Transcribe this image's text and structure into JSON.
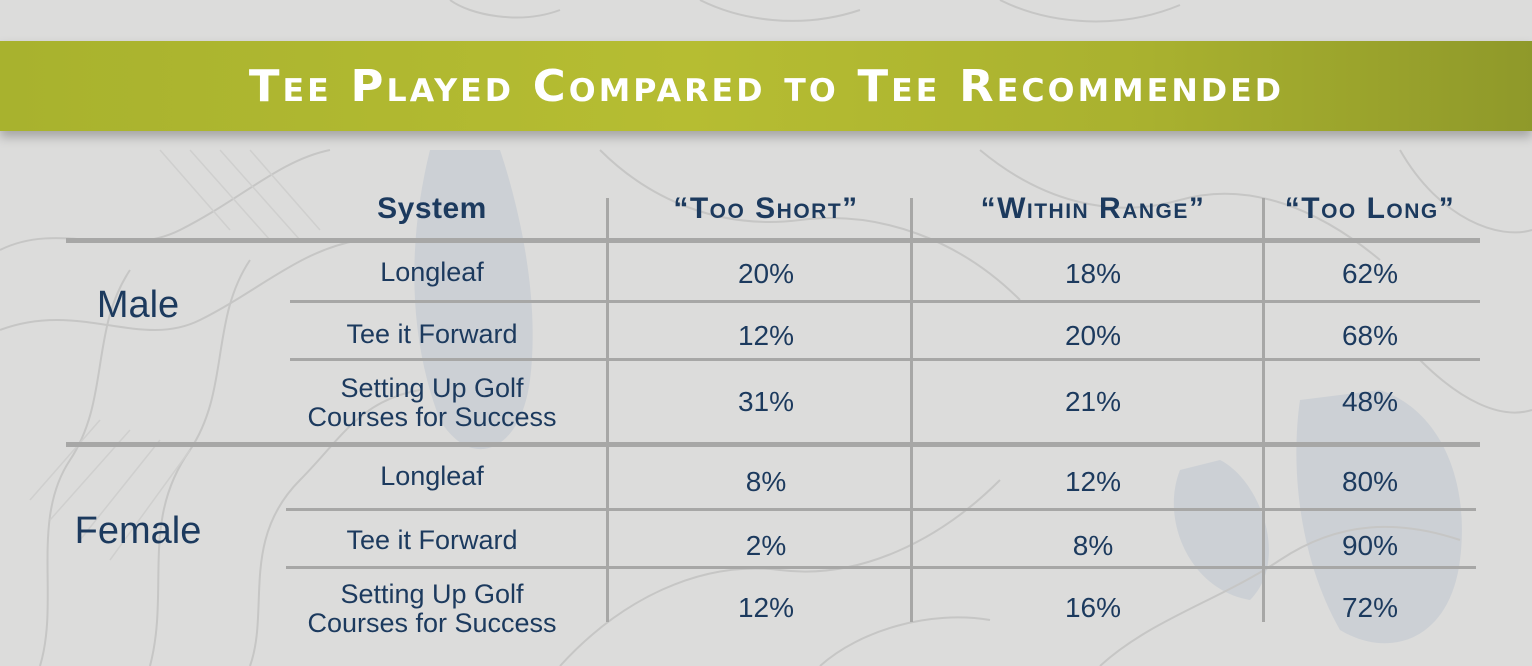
{
  "title": "Tee Played Compared to Tee Recommended",
  "chart_data": {
    "type": "table",
    "columns": [
      "System",
      "“Too Short”",
      "“Within Range”",
      "“Too Long”"
    ],
    "groups": [
      {
        "label": "Male",
        "rows": [
          {
            "system": [
              "Longleaf"
            ],
            "values": [
              "20%",
              "18%",
              "62%"
            ]
          },
          {
            "system": [
              "Tee it Forward"
            ],
            "values": [
              "12%",
              "20%",
              "68%"
            ]
          },
          {
            "system": [
              "Setting Up Golf",
              "Courses for Success"
            ],
            "values": [
              "31%",
              "21%",
              "48%"
            ]
          }
        ]
      },
      {
        "label": "Female",
        "rows": [
          {
            "system": [
              "Longleaf"
            ],
            "values": [
              "8%",
              "12%",
              "80%"
            ]
          },
          {
            "system": [
              "Tee it Forward"
            ],
            "values": [
              "2%",
              "8%",
              "90%"
            ]
          },
          {
            "system": [
              "Setting Up Golf",
              "Courses for Success"
            ],
            "values": [
              "12%",
              "16%",
              "72%"
            ]
          }
        ]
      }
    ]
  }
}
